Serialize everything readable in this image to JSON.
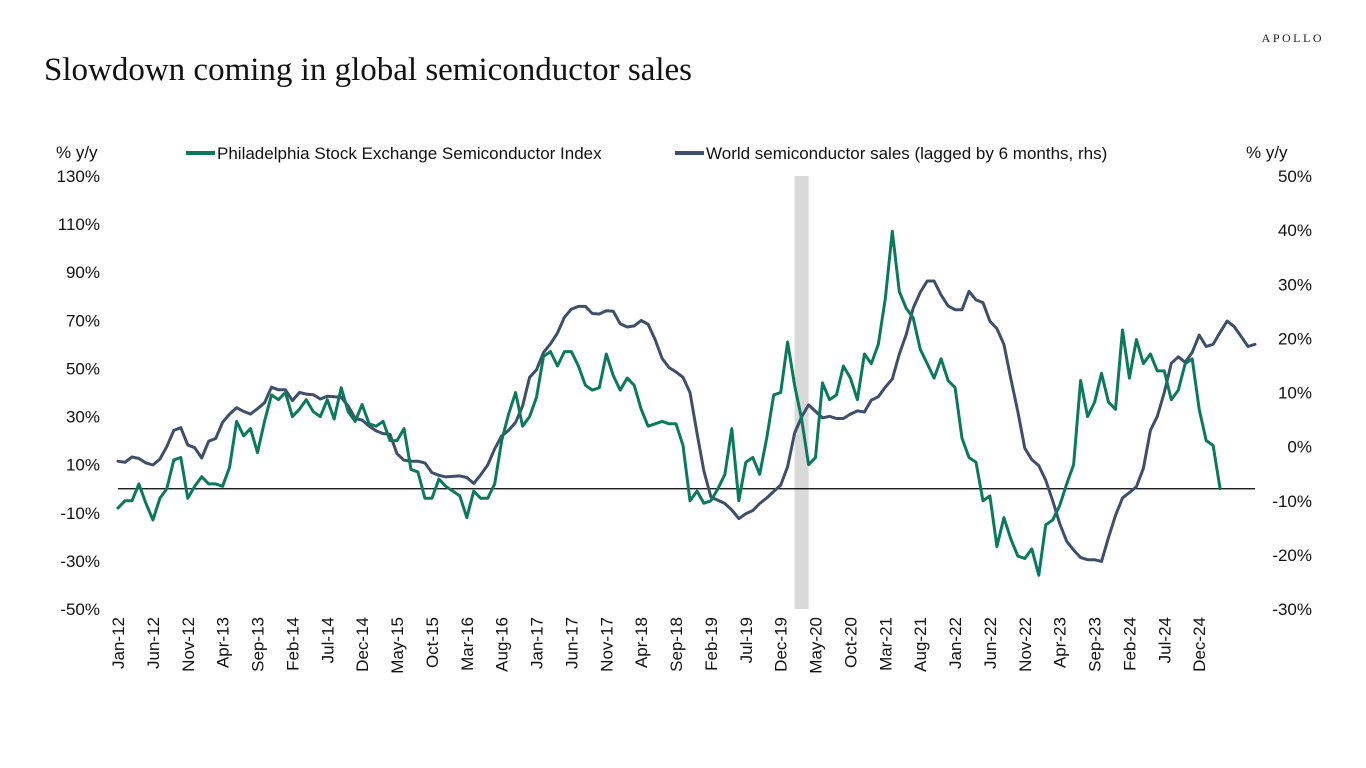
{
  "header": {
    "brand": "APOLLO",
    "title": "Slowdown coming in global semiconductor sales"
  },
  "chart_data": {
    "type": "line",
    "title": "Slowdown coming in global semiconductor sales",
    "left_axis_unit": "% y/y",
    "right_axis_unit": "% y/y",
    "legend_position": "top",
    "ylim_left": [
      -50,
      130
    ],
    "ylim_right": [
      -30,
      50
    ],
    "left_ticks": [
      "130%",
      "110%",
      "90%",
      "70%",
      "50%",
      "30%",
      "10%",
      "-10%",
      "-30%",
      "-50%"
    ],
    "right_ticks": [
      "50%",
      "40%",
      "30%",
      "20%",
      "10%",
      "0%",
      "-10%",
      "-20%",
      "-30%"
    ],
    "x_tick_labels": [
      "Jan-12",
      "Jun-12",
      "Nov-12",
      "Apr-13",
      "Sep-13",
      "Feb-14",
      "Jul-14",
      "Dec-14",
      "May-15",
      "Oct-15",
      "Mar-16",
      "Aug-16",
      "Jan-17",
      "Jun-17",
      "Nov-17",
      "Apr-18",
      "Sep-18",
      "Feb-19",
      "Jul-19",
      "Dec-19",
      "May-20",
      "Oct-20",
      "Mar-21",
      "Aug-21",
      "Jan-22",
      "Jun-22",
      "Nov-22",
      "Apr-23",
      "Sep-23",
      "Feb-24",
      "Jul-24",
      "Dec-24"
    ],
    "x_start": "2012-01",
    "recession_shading": [
      "2020-02",
      "2020-04"
    ],
    "series": [
      {
        "name": "Philadelphia Stock Exchange Semiconductor Index",
        "axis": "left",
        "color": "#0b7a5c",
        "values": [
          -8,
          -5,
          -5,
          2,
          -6,
          -13,
          -4,
          0,
          12,
          13,
          -4,
          1,
          5,
          2,
          2,
          1,
          9,
          28,
          22,
          25,
          15,
          28,
          39,
          37,
          40,
          30,
          33,
          37,
          32,
          30,
          37,
          29,
          42,
          32,
          28,
          35,
          27,
          26,
          28,
          20,
          20,
          25,
          8,
          7,
          -4,
          -4,
          4,
          1,
          -1,
          -3,
          -12,
          -1,
          -4,
          -4,
          2,
          20,
          31,
          40,
          26,
          30,
          38,
          55,
          57,
          51,
          57,
          57,
          51,
          43,
          41,
          42,
          56,
          47,
          41,
          46,
          43,
          33,
          26,
          27,
          28,
          27,
          27,
          18,
          -5,
          -1,
          -6,
          -5,
          0,
          6,
          25,
          -5,
          11,
          13,
          6,
          21,
          39,
          40,
          61,
          43,
          29,
          10,
          13,
          44,
          37,
          39,
          51,
          46,
          37,
          56,
          52,
          60,
          79,
          107,
          82,
          75,
          71,
          58,
          52,
          46,
          54,
          45,
          42,
          21,
          13,
          11,
          -5,
          -3,
          -24,
          -12,
          -21,
          -28,
          -29,
          -25,
          -36,
          -15,
          -13,
          -7,
          2,
          10,
          45,
          30,
          36,
          48,
          36,
          33,
          66,
          46,
          62,
          52,
          56,
          49,
          49,
          37,
          41,
          52,
          54,
          33,
          20,
          18,
          0
        ]
      },
      {
        "name": "World semiconductor sales (lagged by 6 months, rhs)",
        "axis": "right",
        "color": "#3d4f6a",
        "values": [
          -2.7,
          -2.9,
          -1.9,
          -2.2,
          -3.0,
          -3.4,
          -2.3,
          0,
          3,
          3.5,
          0.3,
          -0.2,
          -2.1,
          1,
          1.5,
          4.5,
          6,
          7.2,
          6.5,
          6,
          7,
          8.1,
          11,
          10.5,
          10.5,
          8.5,
          10,
          9.7,
          9.6,
          8.8,
          9.3,
          9.2,
          9.1,
          7.5,
          5.2,
          4.9,
          3.8,
          2.9,
          2.4,
          2.3,
          -1.3,
          -2.5,
          -2.7,
          -2.7,
          -3.0,
          -4.8,
          -5.3,
          -5.6,
          -5.5,
          -5.4,
          -5.7,
          -6.8,
          -5.2,
          -3.4,
          -0.4,
          2,
          3,
          4.5,
          7.5,
          12.8,
          14.2,
          17.4,
          19,
          21,
          23.9,
          25.4,
          25.9,
          25.9,
          24.6,
          24.5,
          25.1,
          25.0,
          22.7,
          22.1,
          22.3,
          23.3,
          22.6,
          19.8,
          16.3,
          14.6,
          13.8,
          12.8,
          10,
          2.5,
          -4.5,
          -9.3,
          -9.9,
          -10.5,
          -11.7,
          -13.3,
          -12.4,
          -11.8,
          -10.5,
          -9.5,
          -8.3,
          -7.1,
          -3.7,
          2.5,
          5.5,
          7.7,
          6.5,
          5.3,
          5.6,
          5.2,
          5.2,
          6.0,
          6.6,
          6.4,
          8.6,
          9.2,
          11,
          12.5,
          17.1,
          20.7,
          25.6,
          28.5,
          30.6,
          30.6,
          28,
          26,
          25.3,
          25.3,
          28.7,
          27.1,
          26.6,
          23.2,
          21.8,
          18.9,
          12.5,
          6.5,
          -0.3,
          -2.4,
          -3.5,
          -6.2,
          -10,
          -14.2,
          -17.5,
          -19.1,
          -20.5,
          -20.9,
          -20.9,
          -21.2,
          -16.8,
          -12.7,
          -9.5,
          -8.5,
          -7.4,
          -4,
          3,
          5.6,
          10,
          15.4,
          16.6,
          15.6,
          17.4,
          20.6,
          18.5,
          18.9,
          21.1,
          23.2,
          22.2,
          20.4,
          18.5,
          18.9
        ]
      }
    ]
  }
}
